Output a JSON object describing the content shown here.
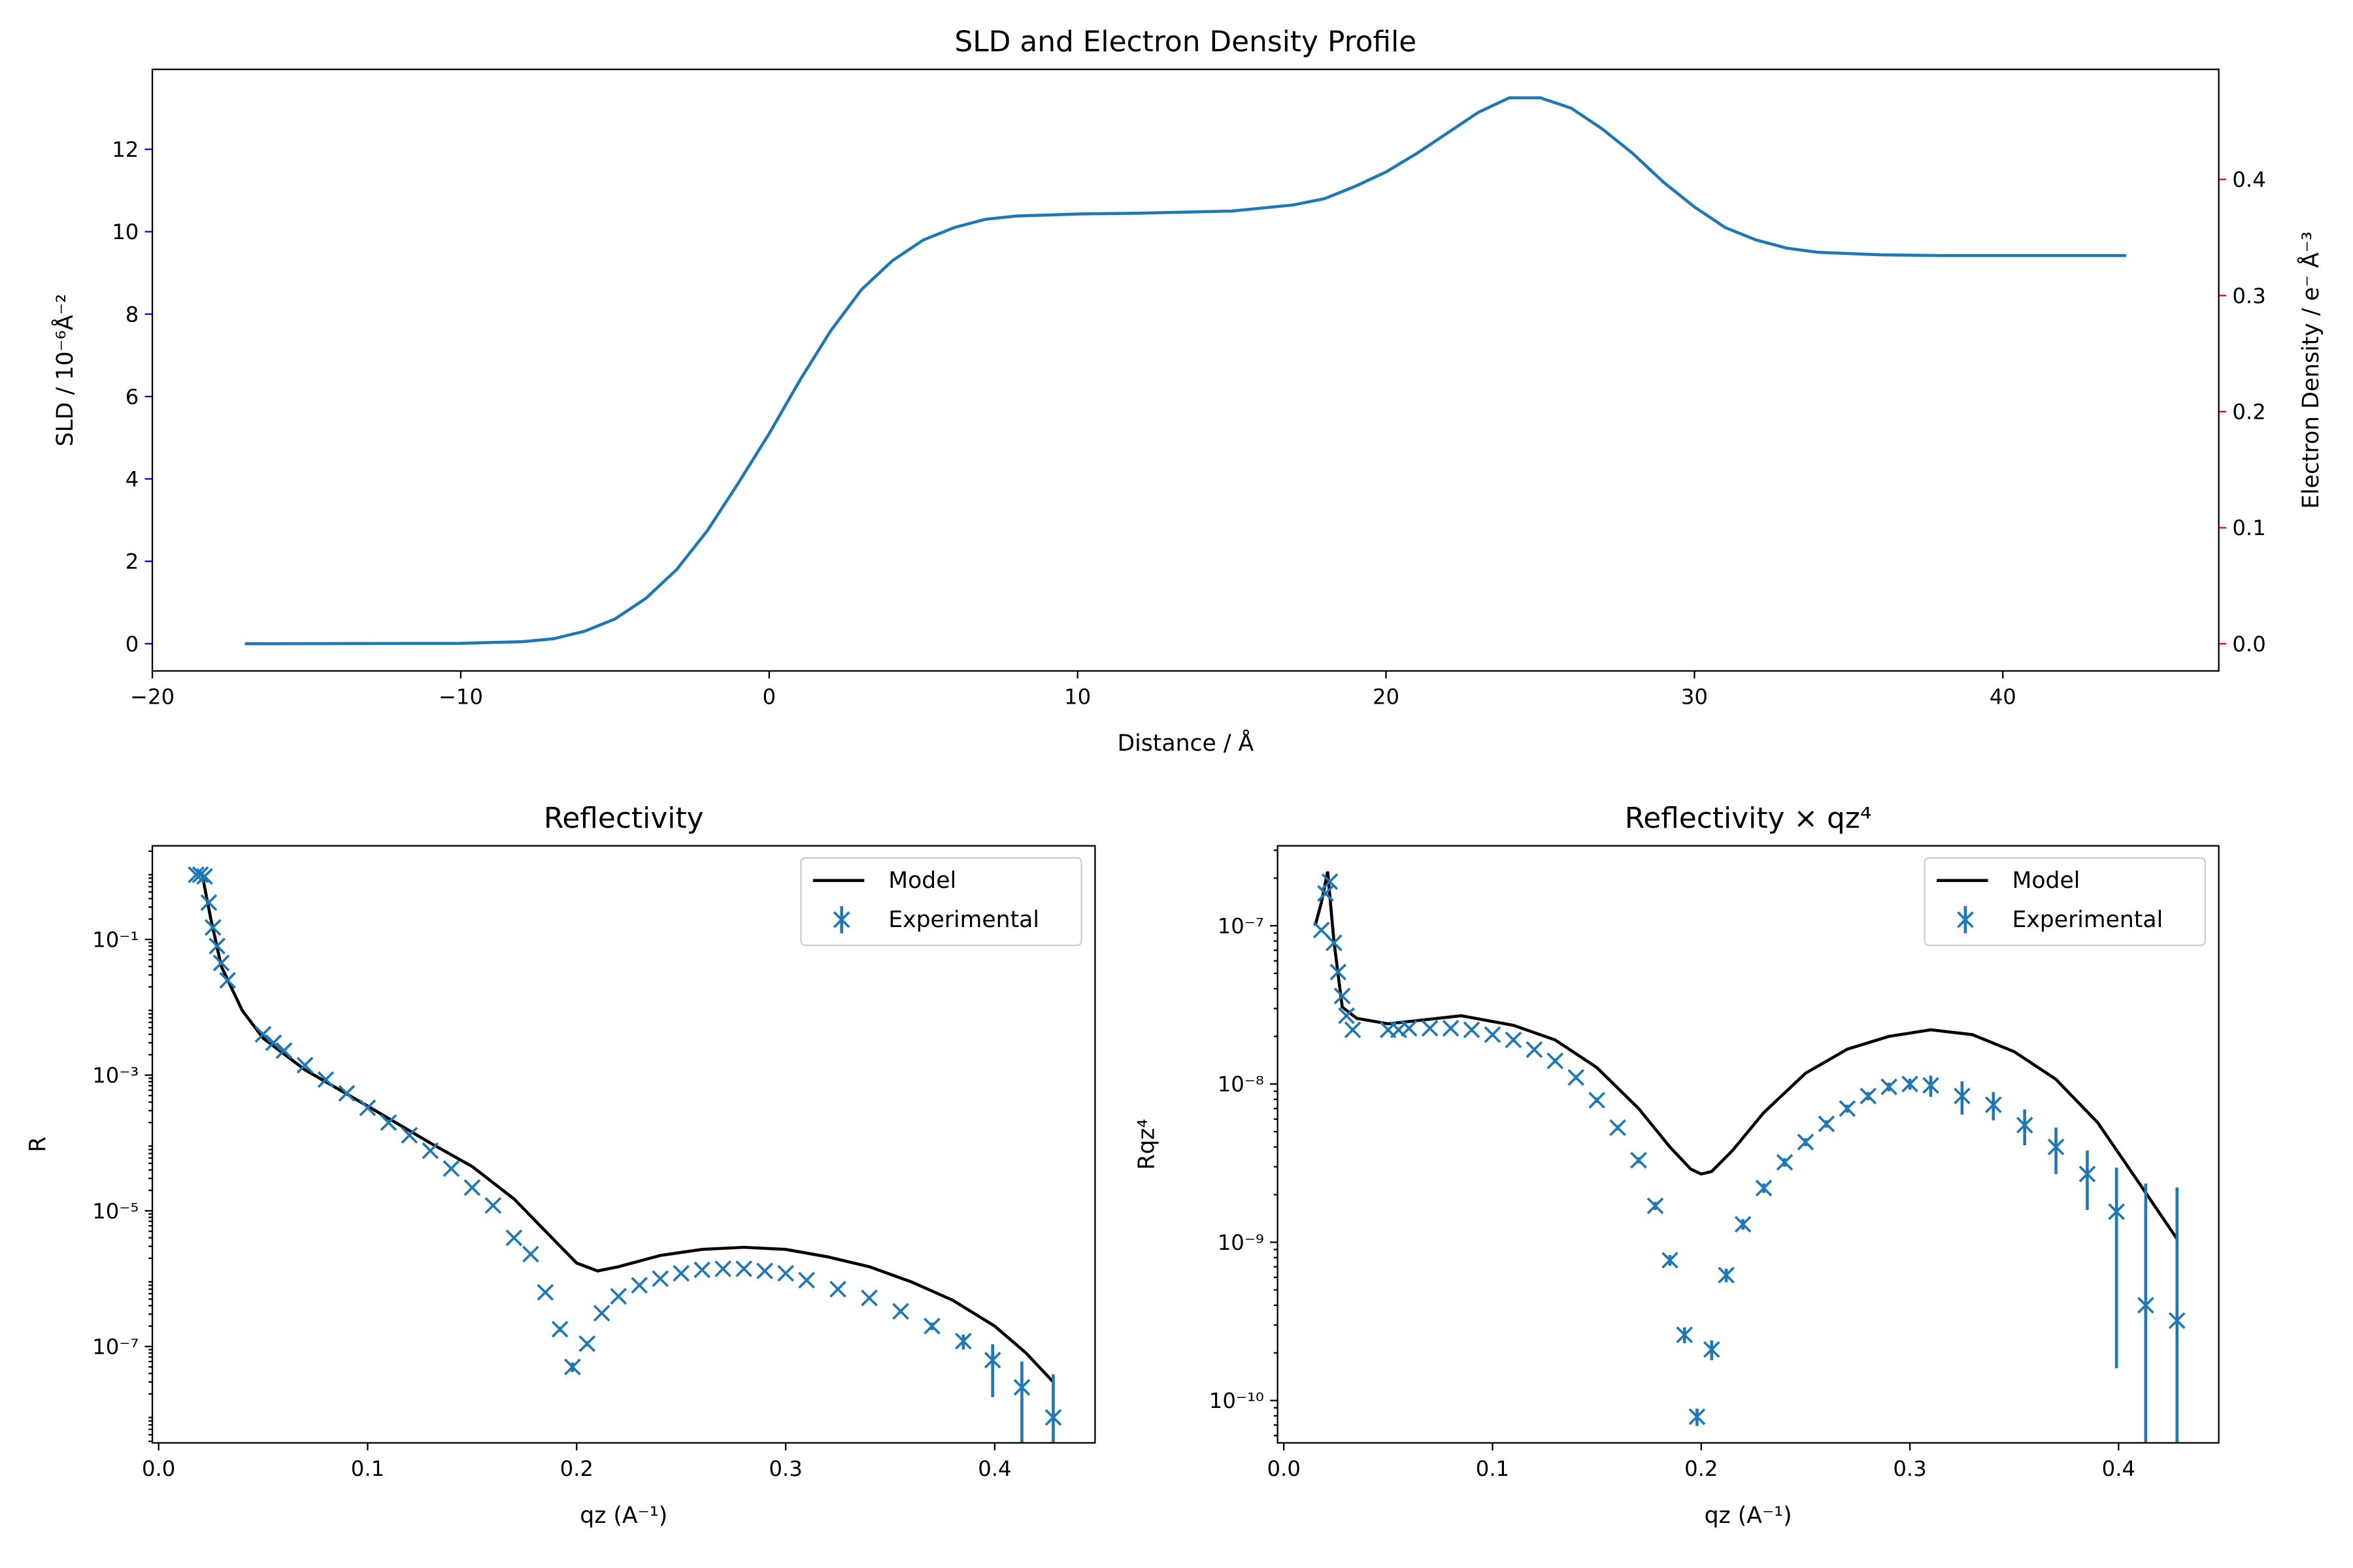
{
  "chart_data": [
    {
      "type": "line",
      "title": "SLD and Electron Density Profile",
      "xlabel": "Distance / Å",
      "ylabel": "SLD / 10⁻⁶Å⁻²",
      "y2label": "Electron Density / e⁻ Å⁻³",
      "color": "#1f77b4",
      "ycolor": "#0000ff",
      "y2color": "#ff0000",
      "x": [
        -17,
        -10,
        -8,
        -7,
        -6,
        -5,
        -4,
        -3,
        -2,
        -1,
        0,
        1,
        2,
        3,
        4,
        5,
        6,
        7,
        8,
        10,
        12,
        15,
        17,
        18,
        19,
        20,
        21,
        22,
        23,
        24,
        25,
        26,
        27,
        28,
        29,
        30,
        31,
        32,
        33,
        34,
        36,
        38,
        41,
        44
      ],
      "values": [
        0,
        0.01,
        0.05,
        0.12,
        0.3,
        0.6,
        1.1,
        1.8,
        2.75,
        3.9,
        5.1,
        6.4,
        7.6,
        8.6,
        9.3,
        9.8,
        10.1,
        10.3,
        10.38,
        10.43,
        10.45,
        10.5,
        10.65,
        10.8,
        11.1,
        11.45,
        11.9,
        12.4,
        12.9,
        13.25,
        13.25,
        13.0,
        12.5,
        11.9,
        11.2,
        10.6,
        10.1,
        9.8,
        9.6,
        9.5,
        9.44,
        9.42,
        9.42,
        9.42
      ],
      "xlim": [
        -20,
        47
      ],
      "xticks": [
        {
          "value": -20,
          "label": "−20"
        },
        {
          "value": -10,
          "label": "−10"
        },
        0,
        10,
        20,
        30,
        40
      ],
      "ylim": [
        -0.66,
        13.94
      ],
      "yticks": [
        0,
        2,
        4,
        6,
        8,
        10,
        12
      ],
      "y2lim": [
        -0.0234,
        0.4948
      ],
      "y2ticks": [
        {
          "value": 0,
          "label": "0.0"
        },
        0.1,
        0.2,
        0.3,
        0.4
      ]
    },
    {
      "type": "line",
      "title": "Reflectivity",
      "xlabel": "qz (A⁻¹)",
      "ylabel": "R",
      "ylog": true,
      "legend": "upper right",
      "xlim": [
        -0.003,
        0.448
      ],
      "xticks": [
        {
          "value": 0,
          "label": "0.0"
        },
        0.1,
        0.2,
        0.3,
        0.4
      ],
      "ylim": [
        3.8e-09,
        2.4
      ],
      "yticks": [
        {
          "value": 0.1,
          "label": "10⁻¹"
        },
        {
          "value": 0.001,
          "label": "10⁻³"
        },
        {
          "value": 1e-05,
          "label": "10⁻⁵"
        },
        {
          "value": 1e-07,
          "label": "10⁻⁷"
        }
      ],
      "series": [
        {
          "name": "Model",
          "color": "#000000",
          "x": [
            0.021,
            0.025,
            0.03,
            0.04,
            0.05,
            0.07,
            0.1,
            0.13,
            0.15,
            0.17,
            0.19,
            0.2,
            0.21,
            0.22,
            0.24,
            0.26,
            0.28,
            0.3,
            0.32,
            0.34,
            0.36,
            0.38,
            0.4,
            0.415,
            0.428
          ],
          "values": [
            0.85,
            0.2,
            0.04,
            0.009,
            0.0035,
            0.0012,
            0.00035,
            0.0001,
            4.5e-05,
            1.5e-05,
            3.5e-06,
            1.7e-06,
            1.3e-06,
            1.5e-06,
            2.2e-06,
            2.7e-06,
            2.9e-06,
            2.7e-06,
            2.1e-06,
            1.5e-06,
            9e-07,
            4.8e-07,
            2e-07,
            8e-08,
            3e-08
          ]
        },
        {
          "name": "Experimental",
          "color": "#1f77b4",
          "marker": "x",
          "x": [
            0.018,
            0.02,
            0.022,
            0.024,
            0.026,
            0.028,
            0.03,
            0.033,
            0.05,
            0.055,
            0.06,
            0.07,
            0.08,
            0.09,
            0.1,
            0.11,
            0.12,
            0.13,
            0.14,
            0.15,
            0.16,
            0.17,
            0.178,
            0.185,
            0.192,
            0.198,
            0.205,
            0.212,
            0.22,
            0.23,
            0.24,
            0.25,
            0.26,
            0.27,
            0.28,
            0.29,
            0.3,
            0.31,
            0.325,
            0.34,
            0.355,
            0.37,
            0.385,
            0.399,
            0.413,
            0.428
          ],
          "values": [
            0.9,
            0.9,
            0.85,
            0.35,
            0.15,
            0.08,
            0.045,
            0.025,
            0.004,
            0.003,
            0.0023,
            0.0014,
            0.00086,
            0.00054,
            0.00033,
            0.0002,
            0.00013,
            7.7e-05,
            4.2e-05,
            2.2e-05,
            1.2e-05,
            4e-06,
            2.3e-06,
            6.3e-07,
            1.8e-07,
            5e-08,
            1.1e-07,
            3.1e-07,
            5.5e-07,
            8e-07,
            1e-06,
            1.2e-06,
            1.35e-06,
            1.4e-06,
            1.4e-06,
            1.3e-06,
            1.2e-06,
            9.5e-07,
            7e-07,
            5.2e-07,
            3.3e-07,
            2e-07,
            1.2e-07,
            6.3e-08,
            2.5e-08,
            9e-09
          ],
          "errors": [
            0.02,
            0.02,
            0.02,
            0.008,
            0.003,
            0.0016,
            0.0009,
            0.0005,
            7e-05,
            6e-05,
            4e-05,
            2.5e-05,
            1.5e-05,
            1e-05,
            6e-06,
            4e-06,
            2.5e-06,
            1.5e-06,
            8e-07,
            4e-07,
            2.5e-07,
            1e-07,
            6e-08,
            3e-08,
            1.5e-08,
            8e-09,
            1e-08,
            1.5e-08,
            2e-08,
            2.5e-08,
            3e-08,
            3e-08,
            3e-08,
            3e-08,
            3e-08,
            3e-08,
            3e-08,
            3e-08,
            3e-08,
            3e-08,
            2.5e-08,
            2.5e-08,
            3e-08,
            4.5e-08,
            3.5e-08,
            3e-08
          ]
        }
      ]
    },
    {
      "type": "line",
      "title": "Reflectivity × qz⁴",
      "xlabel": "qz (A⁻¹)",
      "ylabel": "Rqz⁴",
      "ylog": true,
      "legend": "upper right",
      "xlim": [
        -0.003,
        0.448
      ],
      "xticks": [
        {
          "value": 0,
          "label": "0.0"
        },
        0.1,
        0.2,
        0.3,
        0.4
      ],
      "ylim": [
        5.4e-11,
        3.2e-07
      ],
      "yticks": [
        {
          "value": 1e-07,
          "label": "10⁻⁷"
        },
        {
          "value": 1e-08,
          "label": "10⁻⁸"
        },
        {
          "value": 1e-09,
          "label": "10⁻⁹"
        },
        {
          "value": 1e-10,
          "label": "10⁻¹⁰"
        }
      ],
      "series": [
        {
          "name": "Model",
          "color": "#000000",
          "x": [
            0.015,
            0.018,
            0.021,
            0.024,
            0.028,
            0.035,
            0.05,
            0.085,
            0.11,
            0.13,
            0.15,
            0.17,
            0.185,
            0.195,
            0.2,
            0.205,
            0.215,
            0.23,
            0.25,
            0.27,
            0.29,
            0.31,
            0.33,
            0.35,
            0.37,
            0.39,
            0.41,
            0.428
          ],
          "values": [
            1e-07,
            1.4e-07,
            2.2e-07,
            8e-08,
            3.06e-08,
            2.6e-08,
            2.4e-08,
            2.7e-08,
            2.35e-08,
            1.9e-08,
            1.27e-08,
            7e-09,
            4e-09,
            2.9e-09,
            2.7e-09,
            2.8e-09,
            3.8e-09,
            6.6e-09,
            1.17e-08,
            1.66e-08,
            2e-08,
            2.2e-08,
            2.05e-08,
            1.6e-08,
            1.07e-08,
            5.7e-09,
            2.35e-09,
            1.05e-09
          ]
        },
        {
          "name": "Experimental",
          "color": "#1f77b4",
          "marker": "x",
          "x": [
            0.018,
            0.02,
            0.022,
            0.024,
            0.026,
            0.028,
            0.03,
            0.033,
            0.05,
            0.055,
            0.06,
            0.07,
            0.08,
            0.09,
            0.1,
            0.11,
            0.12,
            0.13,
            0.14,
            0.15,
            0.16,
            0.17,
            0.178,
            0.185,
            0.192,
            0.198,
            0.205,
            0.212,
            0.22,
            0.23,
            0.24,
            0.25,
            0.26,
            0.27,
            0.28,
            0.29,
            0.3,
            0.31,
            0.325,
            0.34,
            0.355,
            0.37,
            0.385,
            0.399,
            0.413,
            0.428
          ],
          "values": [
            9.4e-08,
            1.6e-07,
            1.9e-07,
            7.8e-08,
            5.1e-08,
            3.6e-08,
            2.7e-08,
            2.2e-08,
            2.2e-08,
            2.2e-08,
            2.25e-08,
            2.25e-08,
            2.25e-08,
            2.2e-08,
            2.05e-08,
            1.9e-08,
            1.65e-08,
            1.4e-08,
            1.1e-08,
            7.9e-09,
            5.3e-09,
            3.3e-09,
            1.7e-09,
            7.7e-10,
            2.6e-10,
            7.9e-11,
            2.1e-10,
            6.2e-10,
            1.3e-09,
            2.2e-09,
            3.2e-09,
            4.3e-09,
            5.6e-09,
            7e-09,
            8.4e-09,
            9.6e-09,
            1e-08,
            9.8e-09,
            8.4e-09,
            7.4e-09,
            5.5e-09,
            4e-09,
            2.7e-09,
            1.56e-09,
            4e-10,
            3.2e-10
          ],
          "errors": [
            3e-09,
            5e-09,
            6e-09,
            2.4e-09,
            1.5e-09,
            1.1e-09,
            8e-10,
            7e-10,
            7e-10,
            7e-10,
            7e-10,
            7e-10,
            7e-10,
            7e-10,
            6e-10,
            6e-10,
            5e-10,
            5e-10,
            4e-10,
            3e-10,
            2e-10,
            1.5e-10,
            1e-10,
            6e-11,
            3e-11,
            1e-11,
            3e-11,
            6e-11,
            1e-10,
            1.5e-10,
            2e-10,
            2.5e-10,
            3e-10,
            4e-10,
            5e-10,
            6e-10,
            8e-10,
            1.5e-09,
            2e-09,
            1.5e-09,
            1.4e-09,
            1.3e-09,
            1.1e-09,
            1.4e-09,
            1.95e-09,
            1.9e-09
          ]
        }
      ]
    }
  ]
}
